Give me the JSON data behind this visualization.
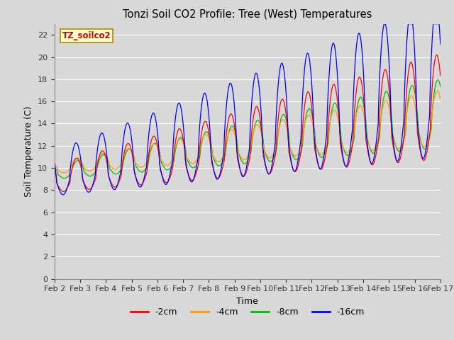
{
  "title": "Tonzi Soil CO2 Profile: Tree (West) Temperatures",
  "xlabel": "Time",
  "ylabel": "Soil Temperature (C)",
  "annotation": "TZ_soilco2",
  "annotation_color": "#cc0000",
  "annotation_bg": "#ffffcc",
  "annotation_border": "#bb8800",
  "ylim": [
    0,
    23
  ],
  "yticks": [
    0,
    2,
    4,
    6,
    8,
    10,
    12,
    14,
    16,
    18,
    20,
    22
  ],
  "bg_color": "#d8d8d8",
  "line_colors": {
    "-2cm": "#ff0000",
    "-4cm": "#ff9900",
    "-8cm": "#00bb00",
    "-16cm": "#0000ff"
  },
  "n_days": 15,
  "n_points_per_day": 144,
  "date_labels": [
    "Feb 2",
    "Feb 3",
    "Feb 4",
    "Feb 5",
    "Feb 6",
    "Feb 7",
    "Feb 8",
    "Feb 9",
    "Feb 10",
    "Feb 11",
    "Feb 12",
    "Feb 13",
    "Feb 14",
    "Feb 15",
    "Feb 16",
    "Feb 17"
  ],
  "date_positions": [
    0,
    1,
    2,
    3,
    4,
    5,
    6,
    7,
    8,
    9,
    10,
    11,
    12,
    13,
    14,
    15
  ]
}
